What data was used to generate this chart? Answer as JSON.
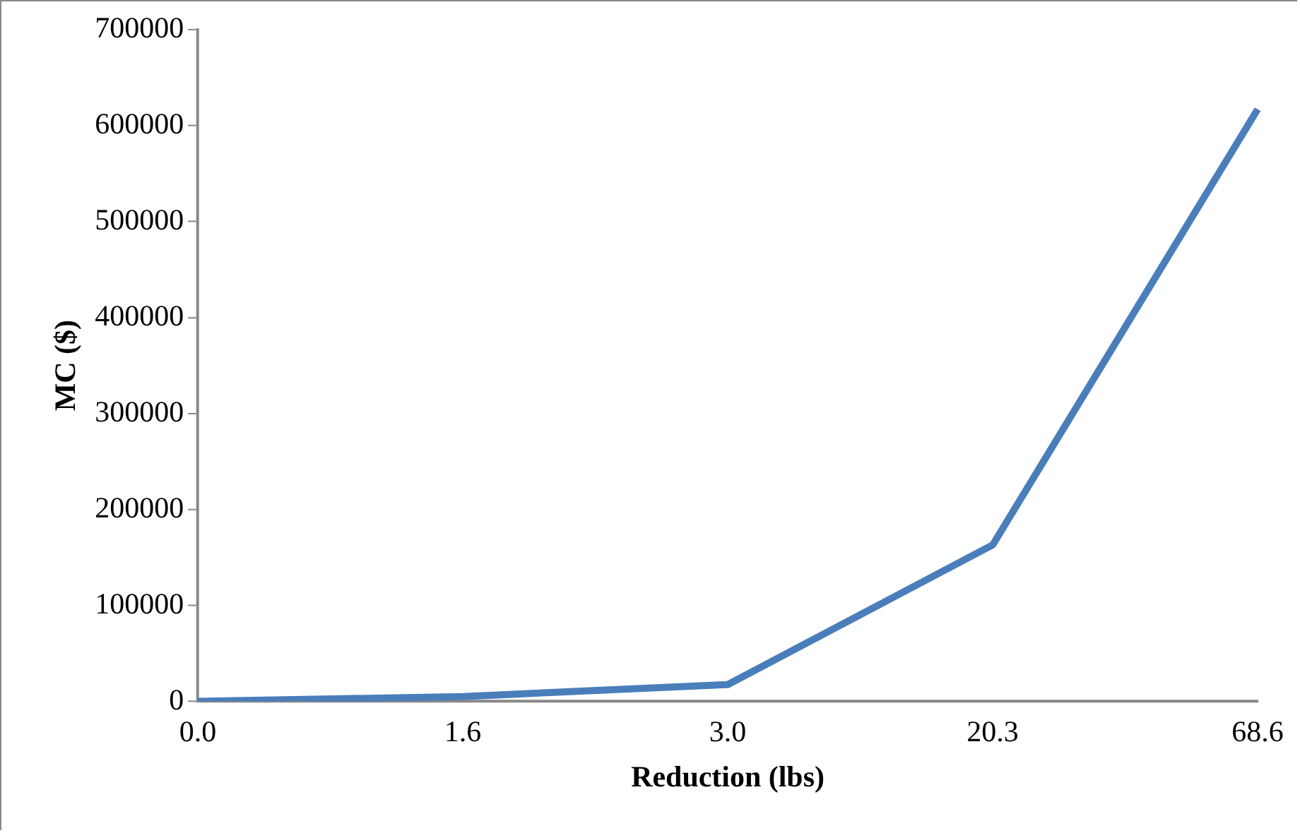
{
  "chart_data": {
    "type": "line",
    "xlabel": "Reduction (lbs)",
    "ylabel": "MC ($)",
    "categories": [
      "0.0",
      "1.6",
      "3.0",
      "20.3",
      "68.6"
    ],
    "series": [
      {
        "color": "#4a7ebb",
        "values": [
          0,
          5000,
          17500,
          163000,
          617000
        ]
      }
    ],
    "ylim": [
      0,
      700000
    ],
    "yticks": [
      0,
      100000,
      200000,
      300000,
      400000,
      500000,
      600000,
      700000
    ],
    "grid": false,
    "legend": false,
    "marker": "none",
    "line_style": "solid"
  }
}
